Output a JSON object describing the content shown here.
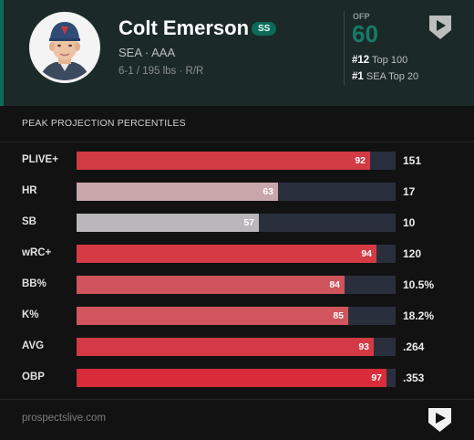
{
  "player": {
    "name": "Colt Emerson",
    "position": "SS",
    "team_level": "SEA · AAA",
    "bio": "6-1 / 195 lbs · R/R"
  },
  "ofp": {
    "label": "OFP",
    "value": "60"
  },
  "rankings": [
    {
      "rank": "#12",
      "label": "Top 100"
    },
    {
      "rank": "#1",
      "label": "SEA Top 20"
    }
  ],
  "section_title": "PEAK PROJECTION PERCENTILES",
  "stats": [
    {
      "label": "PLIVE+",
      "percentile": 92,
      "percentile_text": "92",
      "value": "151",
      "color": "#d23a44"
    },
    {
      "label": "HR",
      "percentile": 63,
      "percentile_text": "63",
      "value": "17",
      "color": "#c9a6aa"
    },
    {
      "label": "SB",
      "percentile": 57,
      "percentile_text": "57",
      "value": "10",
      "color": "#b9b7b9"
    },
    {
      "label": "wRC+",
      "percentile": 94,
      "percentile_text": "94",
      "value": "120",
      "color": "#d53a45"
    },
    {
      "label": "BB%",
      "percentile": 84,
      "percentile_text": "84",
      "value": "10.5%",
      "color": "#d0545c"
    },
    {
      "label": "K%",
      "percentile": 85,
      "percentile_text": "85",
      "value": "18.2%",
      "color": "#d0555c"
    },
    {
      "label": "AVG",
      "percentile": 93,
      "percentile_text": "93",
      "value": ".264",
      "color": "#d33a45"
    },
    {
      "label": "OBP",
      "percentile": 97,
      "percentile_text": "97",
      "value": ".353",
      "color": "#d82d39"
    }
  ],
  "footer": {
    "site": "prospectslive.com"
  },
  "icons": {
    "top_logo": "home-plate-play-icon",
    "bottom_logo": "home-plate-play-icon"
  }
}
